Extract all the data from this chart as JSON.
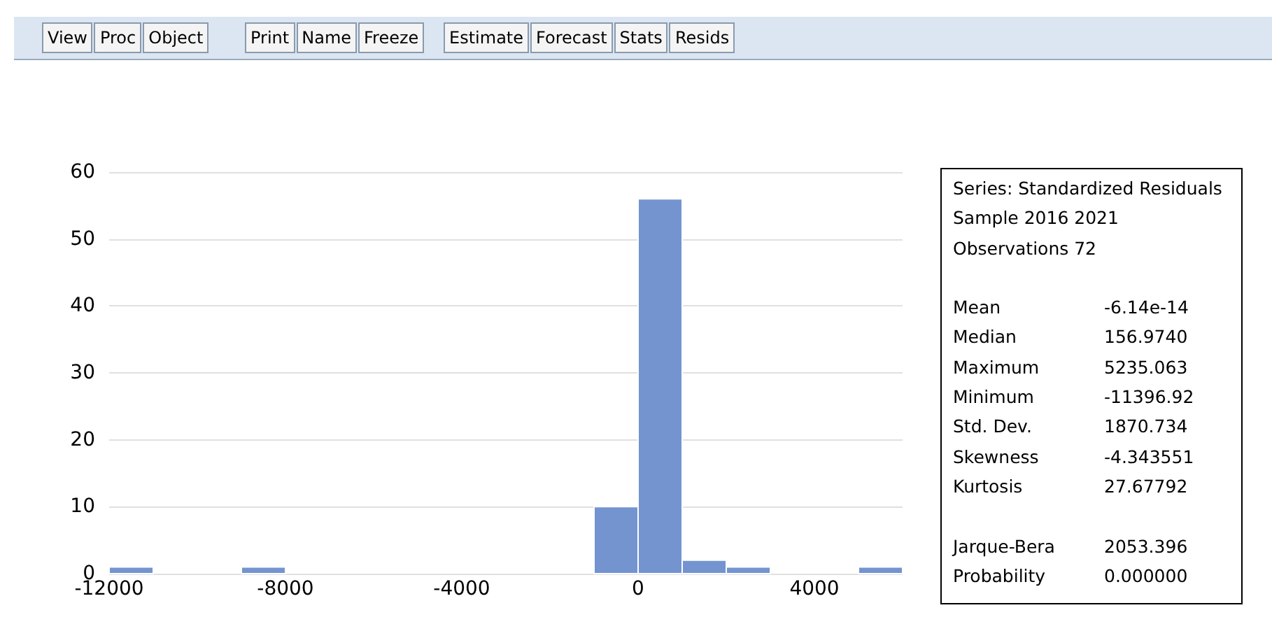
{
  "chart_data": {
    "type": "histogram",
    "bins": [
      -12000,
      -11000,
      -10000,
      -9000,
      -8000,
      -7000,
      -6000,
      -5000,
      -4000,
      -3000,
      -2000,
      -1000,
      0,
      1000,
      2000,
      3000,
      4000,
      5000,
      6000
    ],
    "values": [
      1,
      0,
      0,
      1,
      0,
      0,
      0,
      0,
      0,
      0,
      0,
      10,
      56,
      2,
      1,
      0,
      0,
      1
    ],
    "color": "#7394cf",
    "xlim": [
      -12000,
      6000
    ],
    "xticks": [
      -12000,
      -8000,
      -4000,
      0,
      4000
    ],
    "ylim": [
      0,
      60
    ],
    "yticks": [
      0,
      10,
      20,
      30,
      40,
      50,
      60
    ],
    "grid": "y",
    "annotations": [
      "View",
      "Proc",
      "Object",
      "Print",
      "Name",
      "Freeze",
      "Estimate",
      "Forecast",
      "Stats",
      "Resids",
      "Series: Standardized Residuals",
      "Sample 2016 2021",
      "Observations 72",
      "Mean",
      "-6.14e-14",
      "Median",
      "156.9740",
      "Maximum",
      "5235.063",
      "Minimum",
      "-11396.92",
      "Std. Dev.",
      "1870.734",
      "Skewness",
      "-4.343551",
      "Kurtosis",
      "27.67792",
      "Jarque-Bera",
      "2053.396",
      "Probability",
      "0.000000"
    ]
  }
}
